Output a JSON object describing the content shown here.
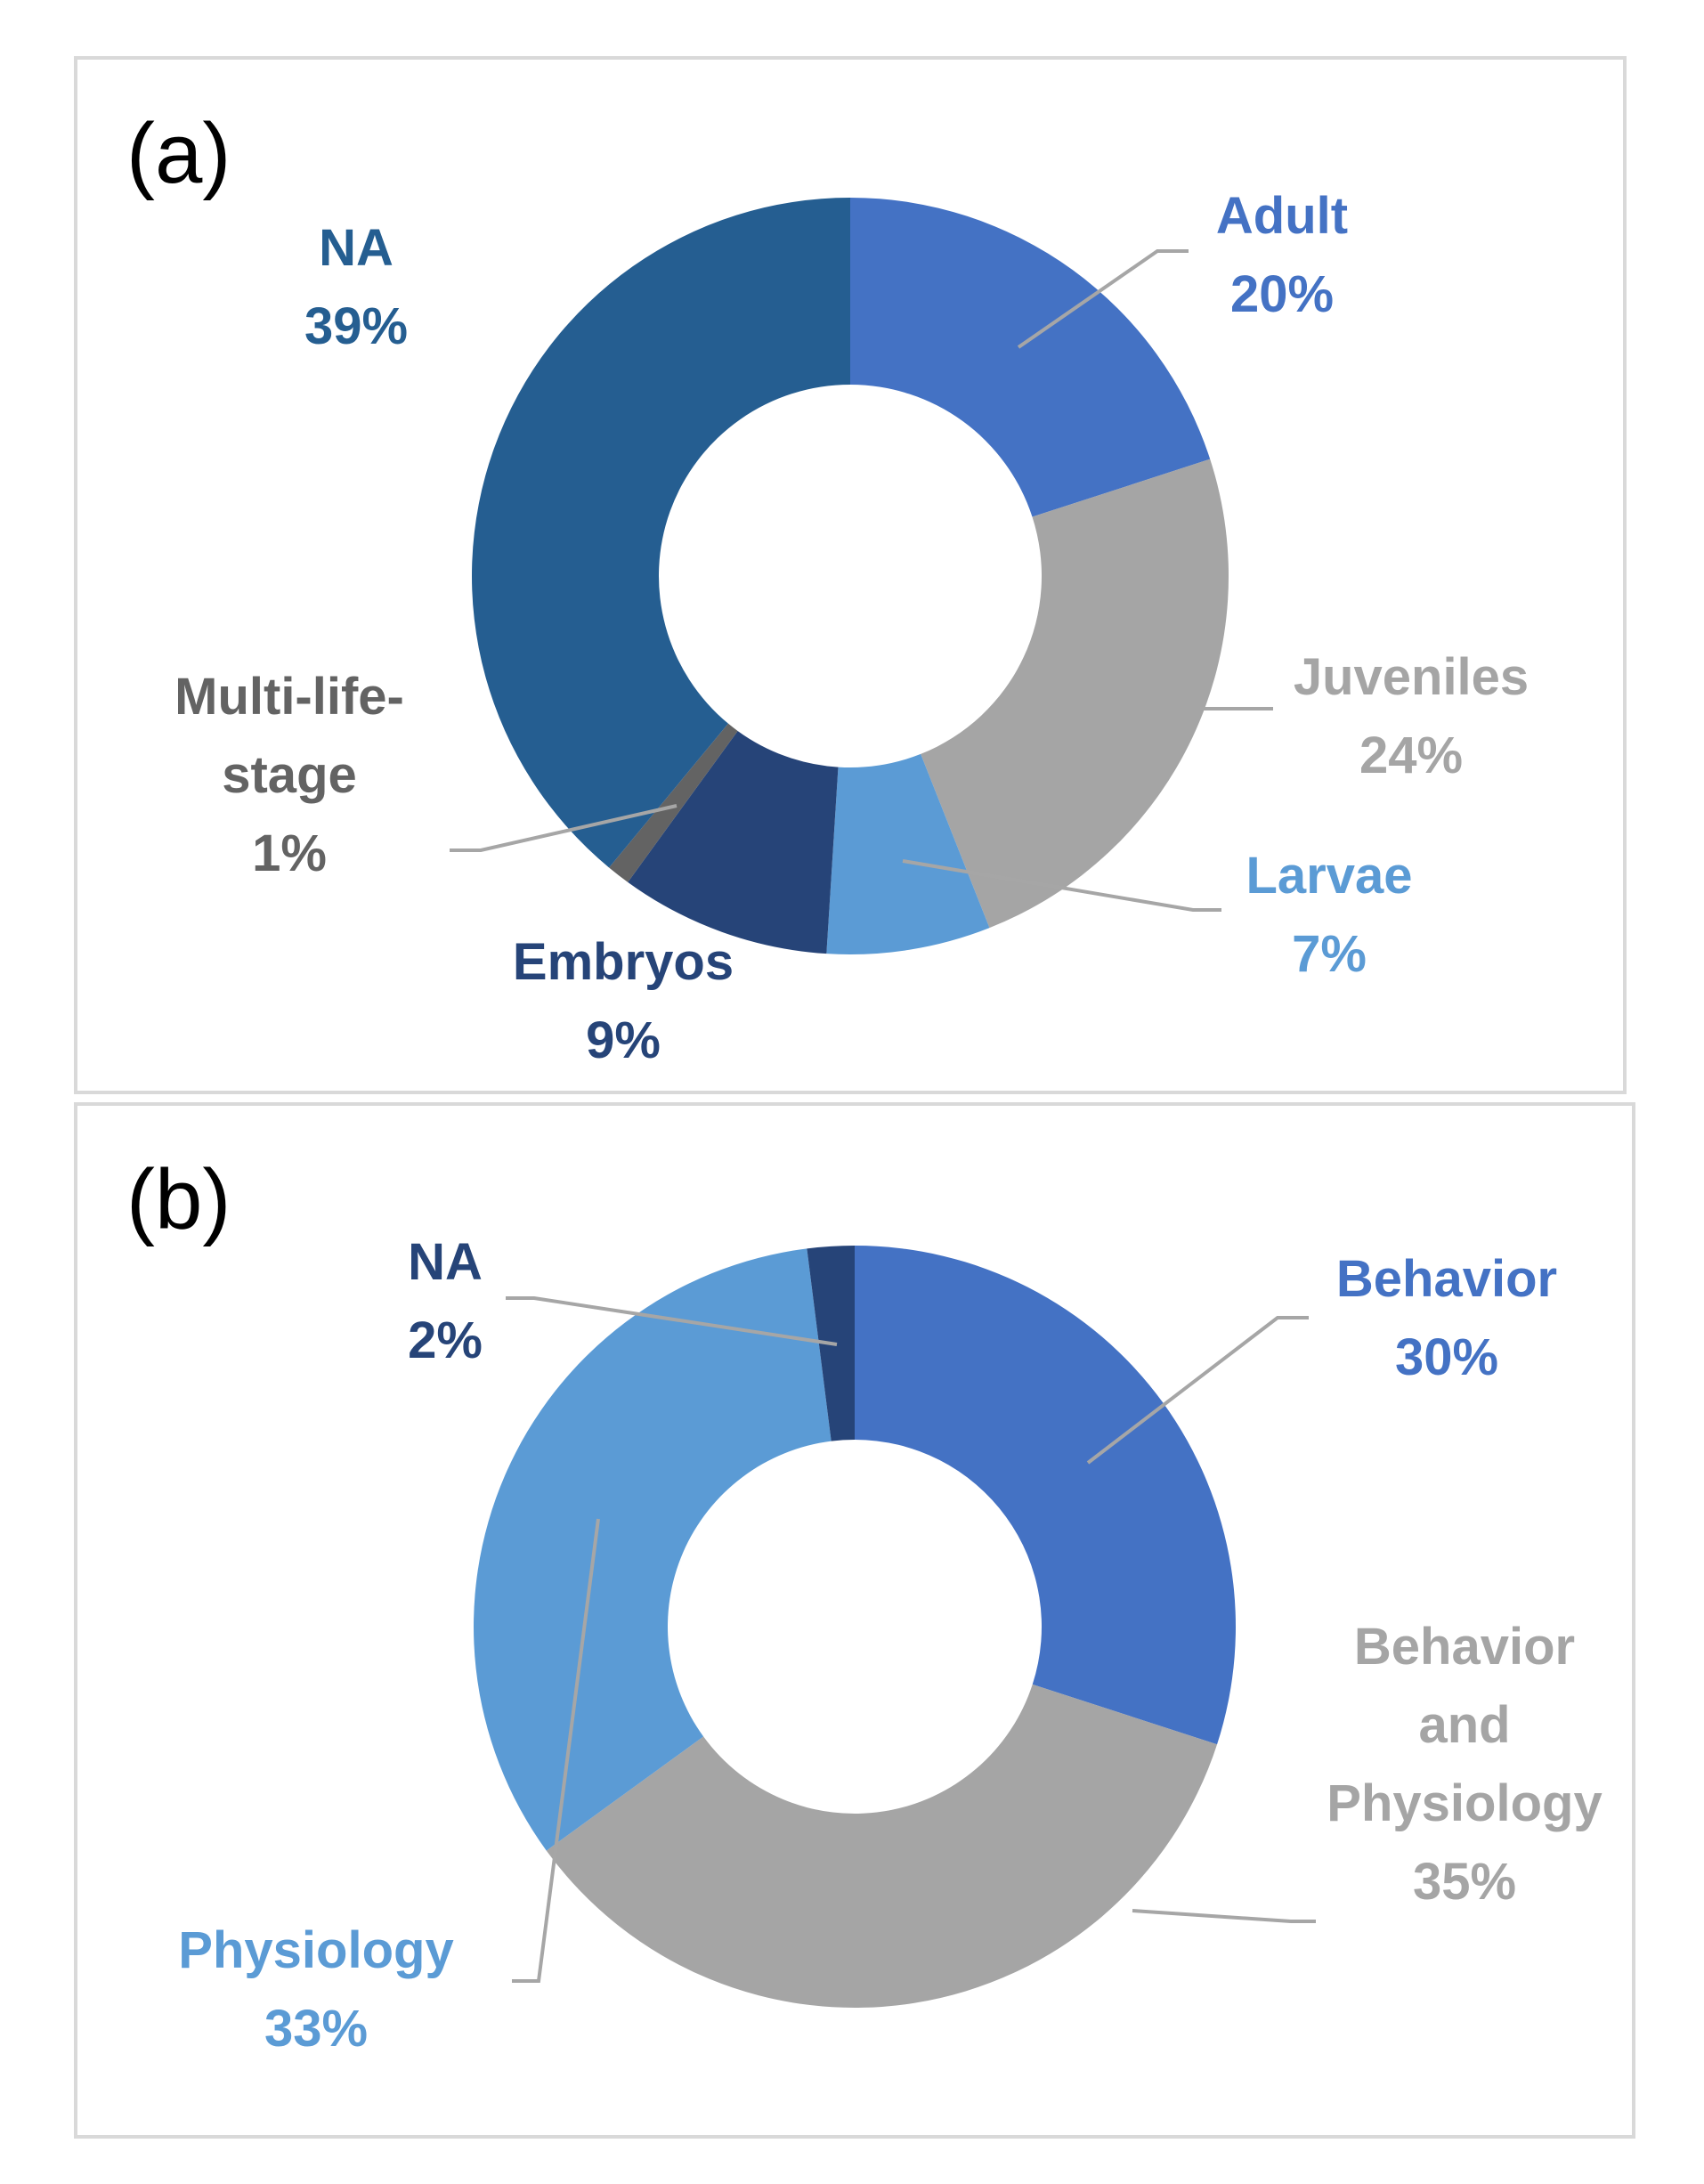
{
  "chart_data": [
    {
      "type": "pie",
      "style": "donut",
      "panel": "(a)",
      "slices": [
        {
          "label": "Adult",
          "value": 20,
          "pct_label": "20%",
          "color": "#4472c4"
        },
        {
          "label": "Juveniles",
          "value": 24,
          "pct_label": "24%",
          "color": "#a5a5a5"
        },
        {
          "label": "Larvae",
          "value": 7,
          "pct_label": "7%",
          "color": "#5b9bd5"
        },
        {
          "label": "Embryos",
          "value": 9,
          "pct_label": "9%",
          "color": "#264478"
        },
        {
          "label": "Multi-life-stage",
          "label_lines": [
            "Multi-life-",
            "stage"
          ],
          "value": 1,
          "pct_label": "1%",
          "color": "#636363"
        },
        {
          "label": "NA",
          "value": 39,
          "pct_label": "39%",
          "color": "#255e91"
        }
      ]
    },
    {
      "type": "pie",
      "style": "donut",
      "panel": "(b)",
      "slices": [
        {
          "label": "Behavior",
          "value": 30,
          "pct_label": "30%",
          "color": "#4472c4"
        },
        {
          "label": "Behavior and Physiology",
          "label_lines": [
            "Behavior",
            "and",
            "Physiology"
          ],
          "value": 35,
          "pct_label": "35%",
          "color": "#a5a5a5"
        },
        {
          "label": "Physiology",
          "value": 33,
          "pct_label": "33%",
          "color": "#5b9bd5"
        },
        {
          "label": "NA",
          "value": 2,
          "pct_label": "2%",
          "color": "#264478"
        }
      ]
    }
  ]
}
